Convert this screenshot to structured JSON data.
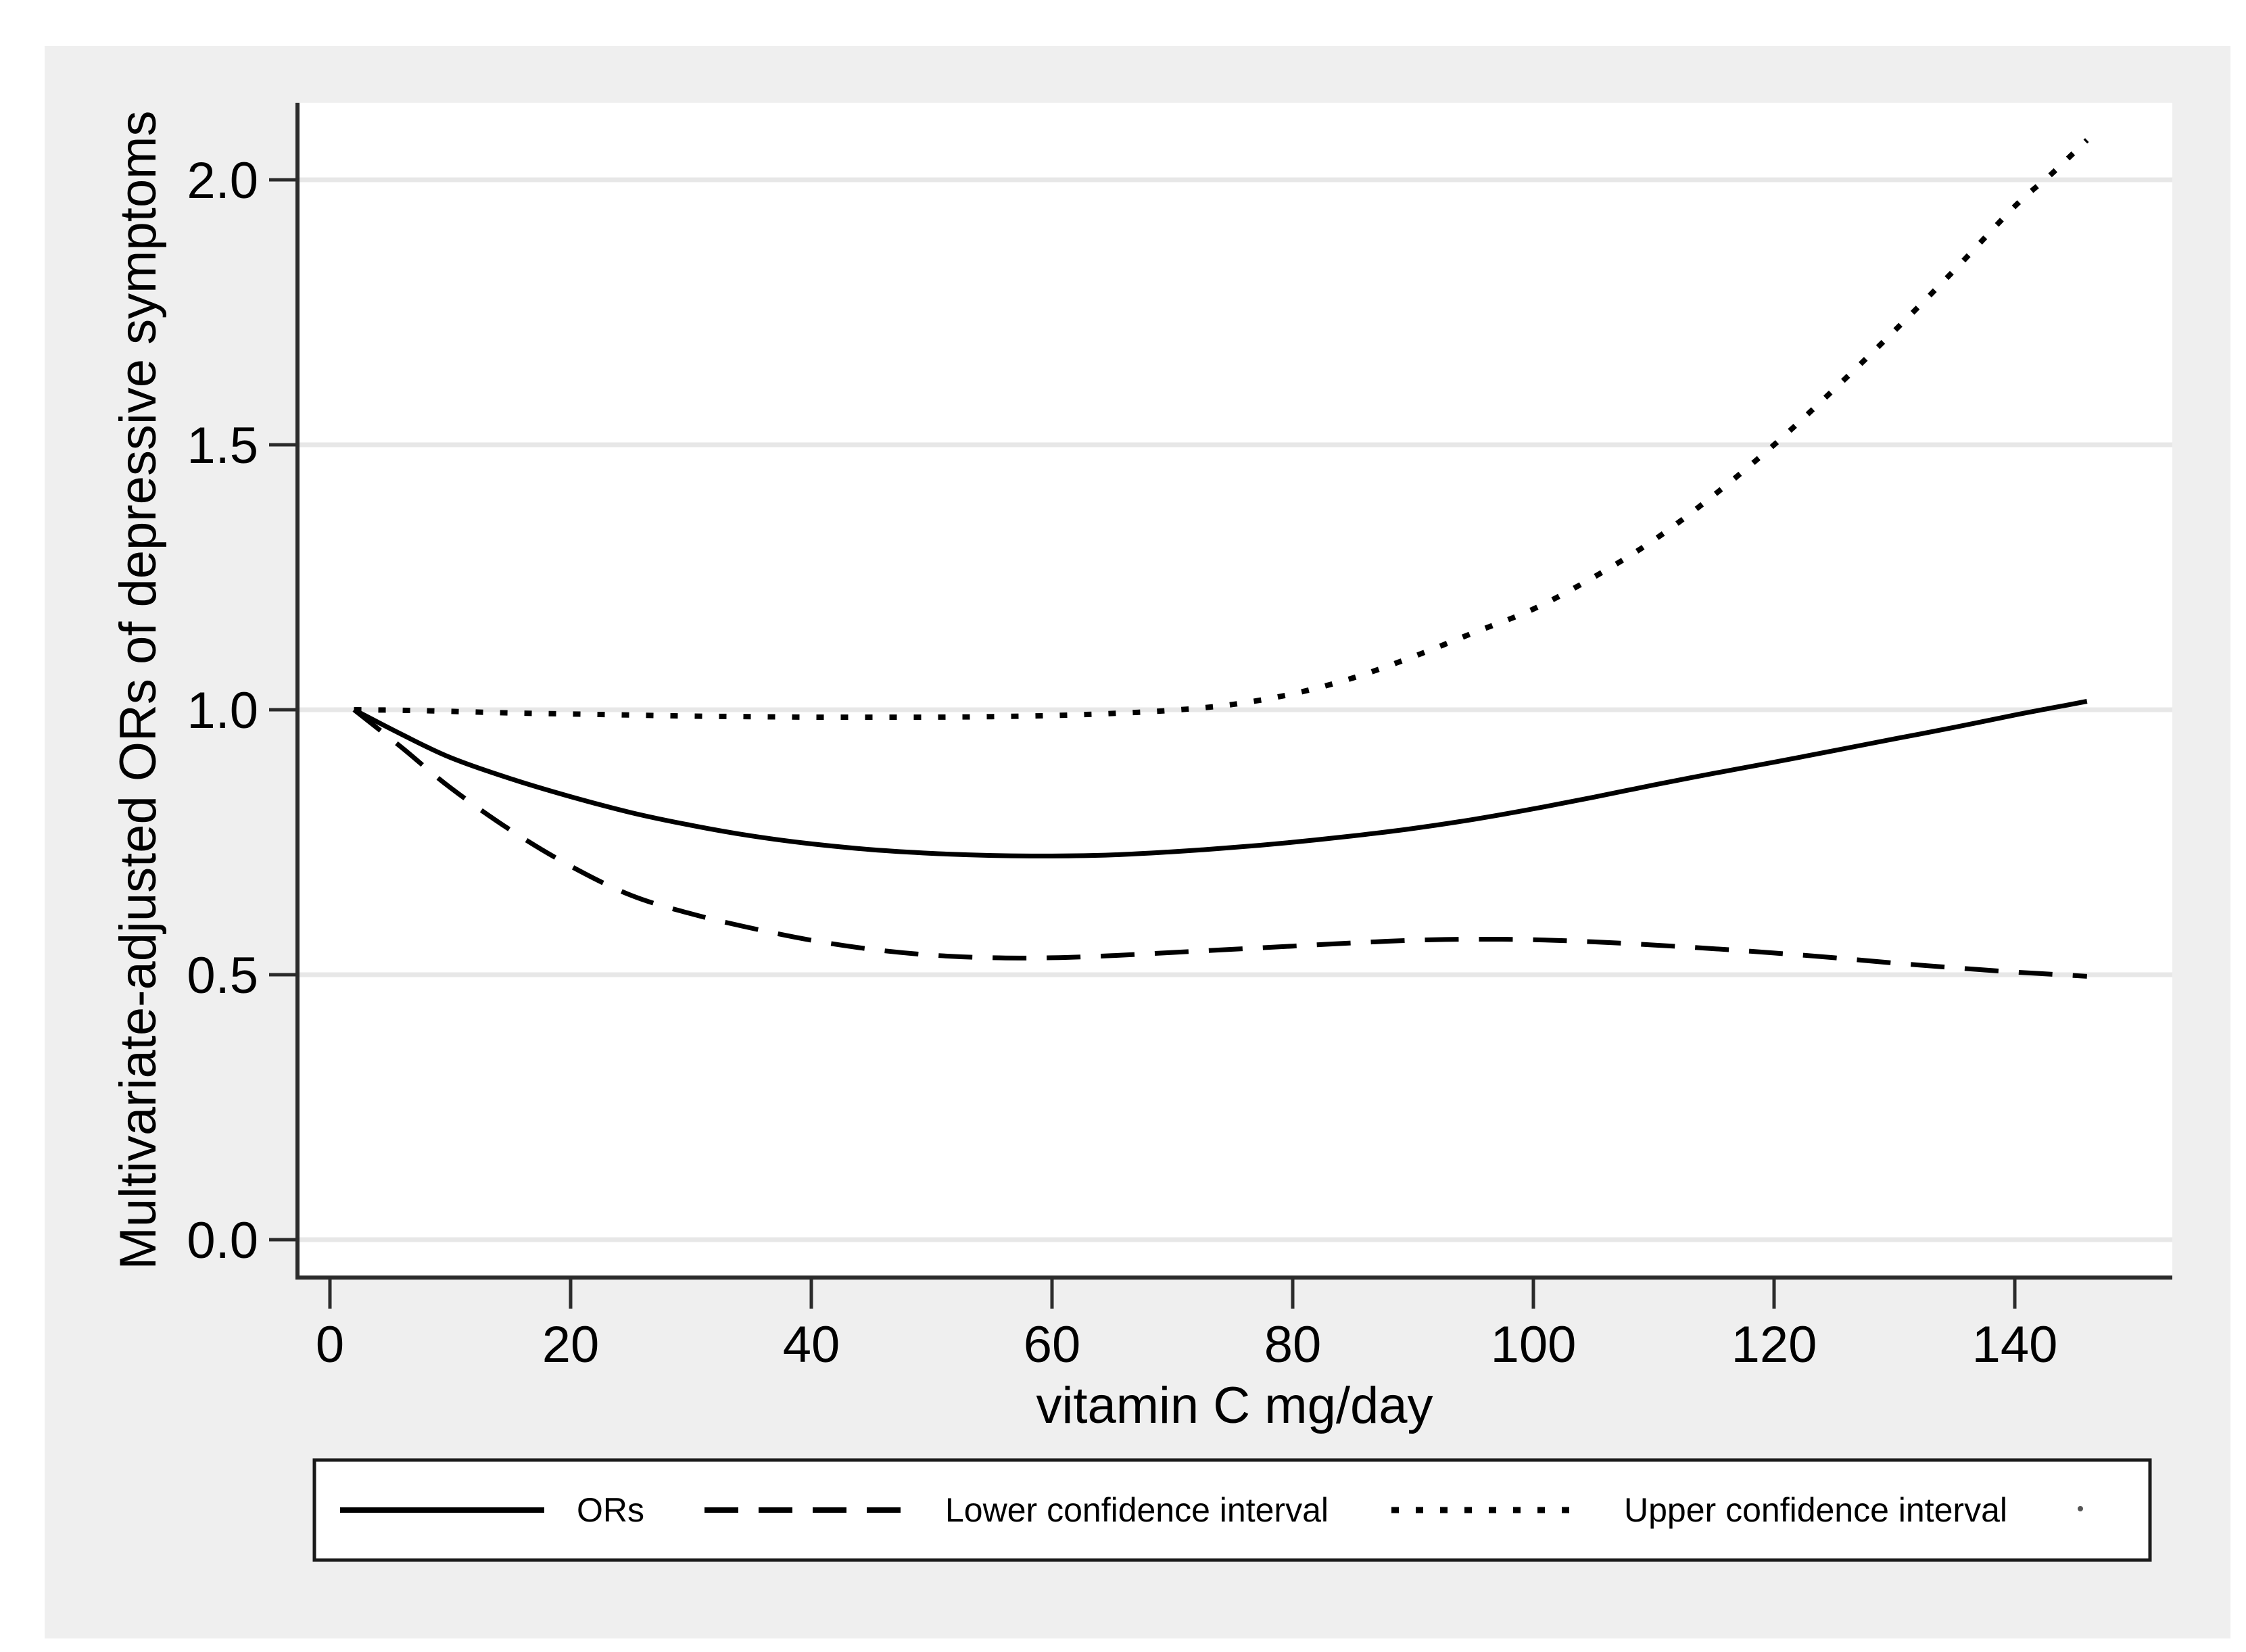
{
  "figure": {
    "background": "#ffffff",
    "panel_color": "#efefef",
    "plot_bg": "#ffffff",
    "grid_color": "#e7e7e7",
    "axis_color": "#2b2b2b",
    "line_color": "#000000",
    "legend": {
      "position": "bottom",
      "border_color": "#1a1a1a",
      "bg": "#ffffff",
      "items": [
        {
          "label": "ORs",
          "style": "solid"
        },
        {
          "label": "Lower confidence interval",
          "style": "dashed"
        },
        {
          "label": "Upper confidence interval",
          "style": "dotted"
        }
      ]
    }
  },
  "chart_data": {
    "type": "line",
    "title": "",
    "xlabel": "vitamin C mg/day",
    "ylabel": "Multivariate-adjusted ORs of depressive symptoms",
    "x_tick_values": [
      0,
      20,
      40,
      60,
      80,
      100,
      120,
      140
    ],
    "x_tick_labels": [
      "0",
      "20",
      "40",
      "60",
      "80",
      "100",
      "120",
      "140"
    ],
    "y_tick_values": [
      0.0,
      0.5,
      1.0,
      1.5,
      2.0
    ],
    "y_tick_labels": [
      "0.0",
      "0.5",
      "1.0",
      "1.5",
      "2.0"
    ],
    "xlim": [
      -3,
      153
    ],
    "ylim": [
      -0.07,
      2.15
    ],
    "grid": "horizontal",
    "legend_position": "bottom",
    "x": [
      2,
      6,
      10,
      15,
      20,
      25,
      30,
      35,
      40,
      45,
      50,
      55,
      60,
      65,
      70,
      75,
      80,
      85,
      90,
      95,
      100,
      105,
      110,
      115,
      120,
      125,
      130,
      135,
      140,
      143,
      146
    ],
    "series": [
      {
        "name": "ORs",
        "dash": "solid",
        "values": [
          1.0,
          0.953,
          0.91,
          0.87,
          0.836,
          0.806,
          0.782,
          0.762,
          0.747,
          0.736,
          0.729,
          0.725,
          0.724,
          0.726,
          0.732,
          0.74,
          0.75,
          0.762,
          0.776,
          0.793,
          0.813,
          0.835,
          0.858,
          0.88,
          0.901,
          0.923,
          0.945,
          0.967,
          0.99,
          1.003,
          1.016
        ]
      },
      {
        "name": "Lower confidence interval",
        "dash": "dashed",
        "values": [
          1.0,
          0.928,
          0.853,
          0.773,
          0.705,
          0.65,
          0.615,
          0.588,
          0.565,
          0.548,
          0.537,
          0.532,
          0.532,
          0.536,
          0.542,
          0.548,
          0.554,
          0.56,
          0.565,
          0.567,
          0.566,
          0.562,
          0.556,
          0.549,
          0.541,
          0.532,
          0.522,
          0.513,
          0.505,
          0.501,
          0.497
        ]
      },
      {
        "name": "Upper confidence interval",
        "dash": "dotted",
        "values": [
          1.0,
          0.999,
          0.997,
          0.994,
          0.992,
          0.99,
          0.988,
          0.987,
          0.986,
          0.986,
          0.986,
          0.987,
          0.989,
          0.993,
          0.999,
          1.01,
          1.03,
          1.06,
          1.1,
          1.145,
          1.19,
          1.25,
          1.32,
          1.405,
          1.5,
          1.605,
          1.715,
          1.83,
          1.95,
          2.01,
          2.075
        ]
      }
    ]
  }
}
